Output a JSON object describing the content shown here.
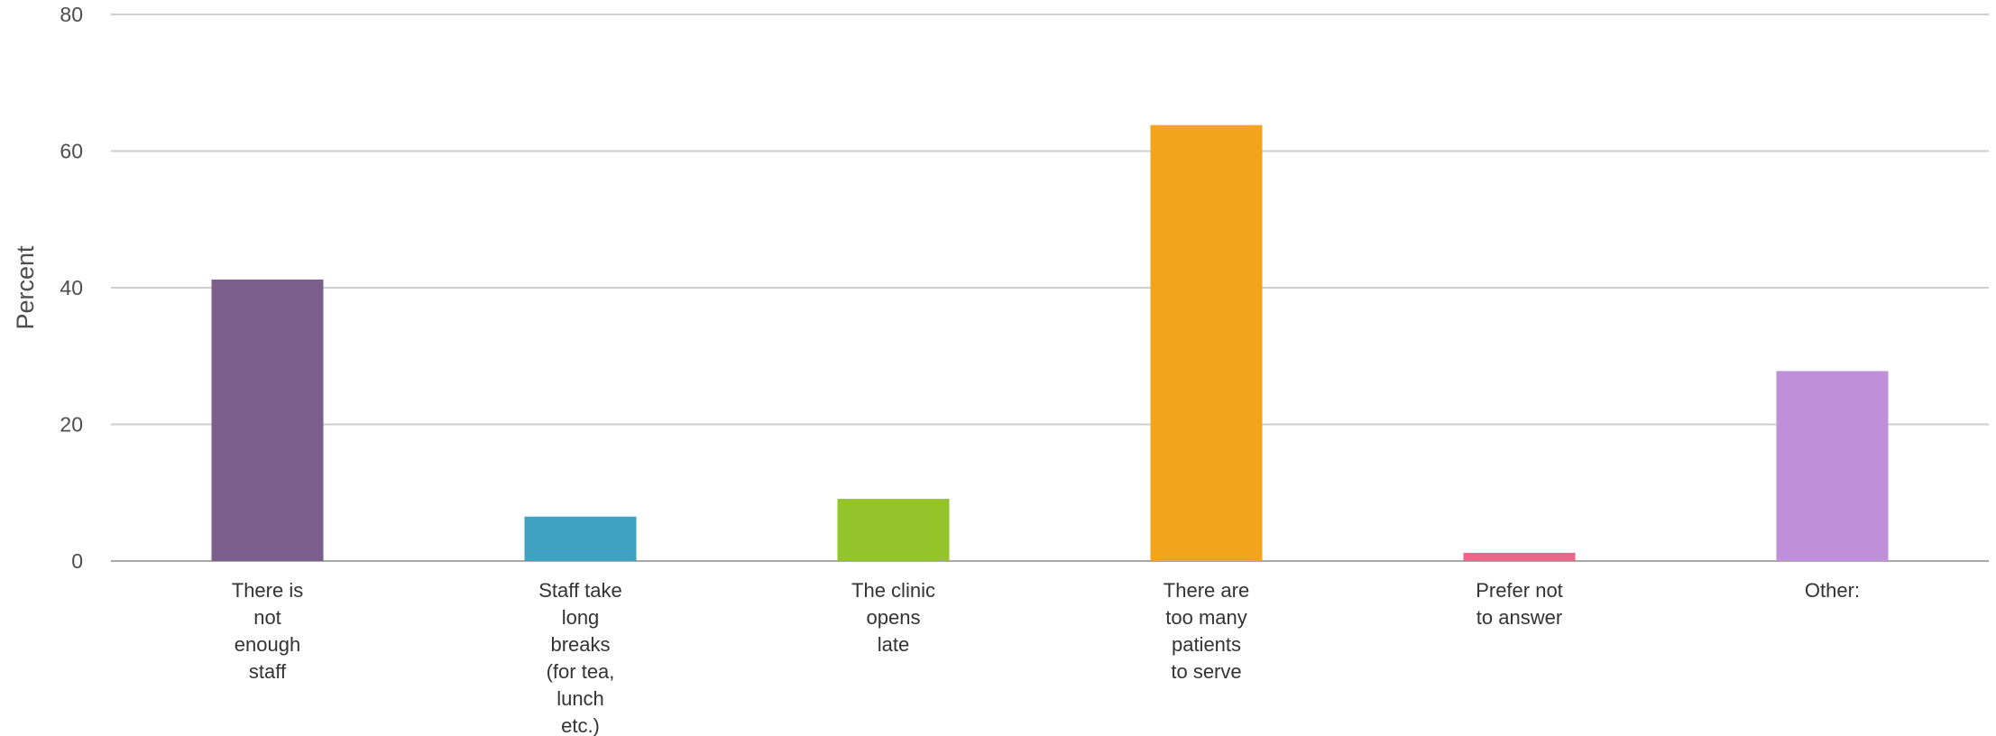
{
  "chart_data": {
    "type": "bar",
    "title": "",
    "xlabel": "",
    "ylabel": "Percent",
    "ylim": [
      0,
      80
    ],
    "yticks": [
      0,
      20,
      40,
      60,
      80
    ],
    "grid": true,
    "legend": "none",
    "categories": [
      [
        "There is",
        "not",
        "enough",
        "staff"
      ],
      [
        "Staff take",
        "long",
        "breaks",
        "(for tea,",
        "lunch",
        "etc.)"
      ],
      [
        "The clinic",
        "opens",
        "late"
      ],
      [
        "There are",
        "too many",
        "patients",
        "to serve"
      ],
      [
        "Prefer not",
        "to answer"
      ],
      [
        "Other:"
      ]
    ],
    "values": [
      41.2,
      6.5,
      9.1,
      63.8,
      1.2,
      27.8
    ],
    "colors": [
      "#7b5e8b",
      "#3fa2c1",
      "#93c42a",
      "#f4a41c",
      "#e8688a",
      "#bf8fda"
    ]
  }
}
